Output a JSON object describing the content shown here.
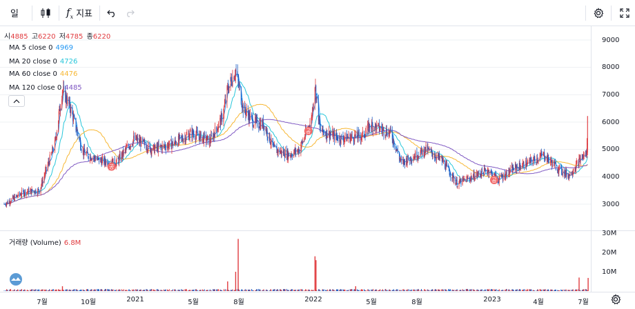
{
  "toolbar": {
    "interval_label": "일",
    "indicator_label": "지표",
    "indicator_icon": "fx-icon",
    "chart_type_icon": "candles-icon",
    "undo_icon": "undo-icon",
    "redo_icon": "redo-icon",
    "settings_icon": "gear-icon",
    "fullscreen_icon": "fullscreen-icon"
  },
  "ohlc": {
    "open_label": "시",
    "open_value": "4885",
    "high_label": "고",
    "high_value": "6220",
    "low_label": "저",
    "low_value": "4785",
    "close_label": "종",
    "close_value": "6220"
  },
  "moving_averages": [
    {
      "label": "MA 5 close 0",
      "value": "4969",
      "color": "#2196f3"
    },
    {
      "label": "MA 20 close 0",
      "value": "4726",
      "color": "#26c6da"
    },
    {
      "label": "MA 60 close 0",
      "value": "4476",
      "color": "#f7b733"
    },
    {
      "label": "MA 120 close 0",
      "value": "4485",
      "color": "#7e57c2"
    }
  ],
  "volume_legend": {
    "label": "거래량 (Volume)",
    "value": "6.8M"
  },
  "colors": {
    "up": "#e03a3e",
    "down": "#1f5fc4",
    "grid": "#eef0f3",
    "marker": "#f26b6b"
  },
  "price_axis": [
    "9000",
    "8000",
    "7000",
    "6000",
    "5000",
    "4000",
    "3000"
  ],
  "volume_axis": [
    "30M",
    "20M",
    "10M"
  ],
  "time_axis": [
    "7월",
    "10월",
    "2021",
    "5월",
    "8월",
    "2022",
    "5월",
    "8월",
    "2023",
    "4월",
    "7월"
  ],
  "marker_label": "공",
  "chart_data": {
    "type": "candlestick",
    "ylim": [
      2300,
      9400
    ],
    "volume_ylim": [
      0,
      30000000
    ],
    "price_keypoints": [
      [
        "2020-05-01",
        3000
      ],
      [
        "2020-06-10",
        3450
      ],
      [
        "2020-07-10",
        3500
      ],
      [
        "2020-08-10",
        5200
      ],
      [
        "2020-08-25",
        7200
      ],
      [
        "2020-09-10",
        6500
      ],
      [
        "2020-10-05",
        4900
      ],
      [
        "2020-11-05",
        4600
      ],
      [
        "2020-12-10",
        4500
      ],
      [
        "2021-01-15",
        5400
      ],
      [
        "2021-02-20",
        5000
      ],
      [
        "2021-04-01",
        5200
      ],
      [
        "2021-05-10",
        5600
      ],
      [
        "2021-06-15",
        5300
      ],
      [
        "2021-07-10",
        6200
      ],
      [
        "2021-07-20",
        7200
      ],
      [
        "2021-08-05",
        7900
      ],
      [
        "2021-08-20",
        6500
      ],
      [
        "2021-09-10",
        6000
      ],
      [
        "2021-10-01",
        5900
      ],
      [
        "2021-10-20",
        5000
      ],
      [
        "2021-11-20",
        4800
      ],
      [
        "2021-12-10",
        5000
      ],
      [
        "2022-01-03",
        6100
      ],
      [
        "2022-01-10",
        7400
      ],
      [
        "2022-01-20",
        5700
      ],
      [
        "2022-03-01",
        5400
      ],
      [
        "2022-04-15",
        5500
      ],
      [
        "2022-05-01",
        5900
      ],
      [
        "2022-06-10",
        5600
      ],
      [
        "2022-07-01",
        4500
      ],
      [
        "2022-07-20",
        4700
      ],
      [
        "2022-08-20",
        5000
      ],
      [
        "2022-09-20",
        4600
      ],
      [
        "2022-10-20",
        3750
      ],
      [
        "2022-11-20",
        4000
      ],
      [
        "2022-12-20",
        4250
      ],
      [
        "2023-01-10",
        3900
      ],
      [
        "2023-02-10",
        4300
      ],
      [
        "2023-03-10",
        4500
      ],
      [
        "2023-04-10",
        4800
      ],
      [
        "2023-05-10",
        4300
      ],
      [
        "2023-05-30",
        4050
      ],
      [
        "2023-06-10",
        4300
      ],
      [
        "2023-06-25",
        4700
      ],
      [
        "2023-07-05",
        4850
      ],
      [
        "2023-07-08",
        6220
      ]
    ],
    "volume_spikes": [
      [
        "2020-08-25",
        2500000
      ],
      [
        "2021-07-20",
        5000000
      ],
      [
        "2021-08-05",
        10000000
      ],
      [
        "2021-08-10",
        27000000
      ],
      [
        "2022-01-10",
        18000000
      ],
      [
        "2022-01-12",
        16000000
      ],
      [
        "2022-04-01",
        2500000
      ],
      [
        "2023-06-20",
        7000000
      ],
      [
        "2023-07-08",
        6800000
      ]
    ],
    "markers": [
      "2020-12-01",
      "2021-12-28",
      "2023-01-02"
    ]
  }
}
